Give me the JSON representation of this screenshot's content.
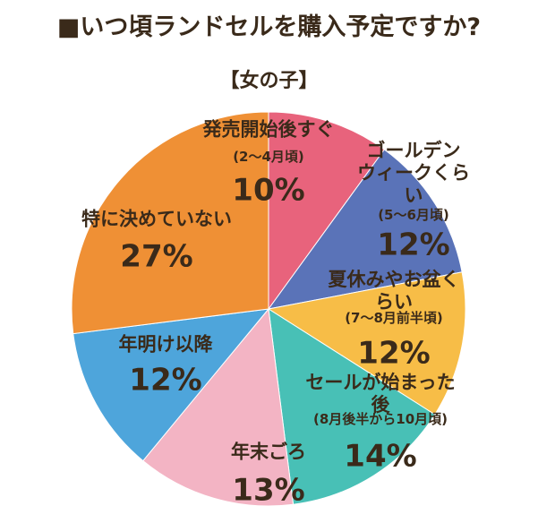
{
  "chart_data": {
    "type": "pie",
    "title": "■いつ頃ランドセルを購入予定ですか?",
    "subtitle": "【女の子】",
    "categories": [
      "発売開始後すぐ",
      "ゴールデン\nウィークくらい",
      "夏休みやお盆くらい",
      "セールが始まった後",
      "年末ごろ",
      "年明け以降",
      "特に決めていない"
    ],
    "notes": [
      "(2〜4月頃)",
      "(5〜6月頃)",
      "(7〜8月前半頃)",
      "(8月後半から10月頃)",
      null,
      null,
      null
    ],
    "values": [
      10,
      12,
      12,
      14,
      13,
      12,
      27
    ],
    "value_labels": [
      "10%",
      "12%",
      "12%",
      "14%",
      "13%",
      "12%",
      "27%"
    ],
    "colors": [
      "#e8637c",
      "#5a73b8",
      "#f7bd47",
      "#48c0b6",
      "#f3b4c4",
      "#4ea5db",
      "#ef9035"
    ]
  }
}
